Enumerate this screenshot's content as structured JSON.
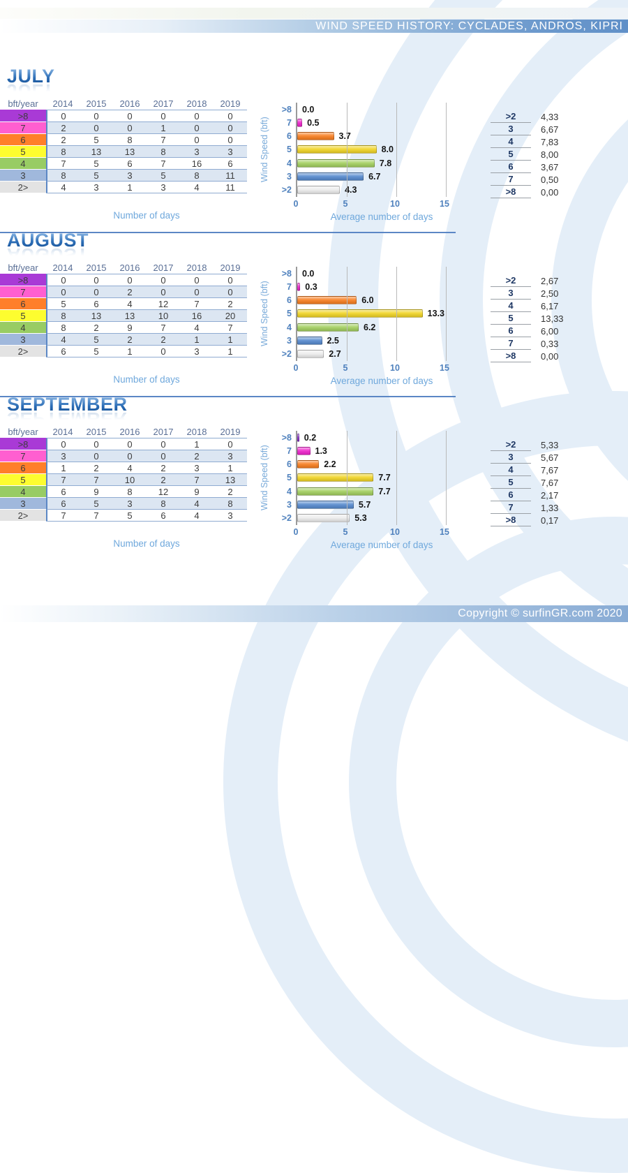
{
  "header": {
    "title": "WIND SPEED HISTORY: CYCLADES, ANDROS, KIPRI"
  },
  "footer": {
    "text": "Copyright © surfinGR.com 2020"
  },
  "labels": {
    "corner": "bft/year",
    "caption": "Number of days",
    "xlabel": "Average number of days",
    "ylabel": "Wind Speed (bft)"
  },
  "years": [
    "2014",
    "2015",
    "2016",
    "2017",
    "2018",
    "2019"
  ],
  "table_row_labels": [
    ">8",
    "7",
    "6",
    "5",
    "4",
    "3",
    "2>"
  ],
  "row_colors": [
    "#a93ad6",
    "#ff5fd0",
    "#ff7f2a",
    "#fdfd2f",
    "#98cc64",
    "#a0b8dc",
    "#e3e3e3"
  ],
  "bar_colors": [
    "#8e2fd0",
    "#ee22cc",
    "#f87d1e",
    "#f0d424",
    "#a2cf5e",
    "#5589ce",
    "#ededed"
  ],
  "accent_colors": {
    "axis_blue": "#4f81bd",
    "light_blue_label": "#6fa8dc",
    "divider_blue": "#5b87c5",
    "header_bar_blue": "#6090c8",
    "alt_row": "#dce6f2"
  },
  "chart_data": [
    {
      "type": "bar",
      "orientation": "horizontal",
      "title": "JULY",
      "categories": [
        ">8",
        "7",
        "6",
        "5",
        "4",
        "3",
        ">2"
      ],
      "values": [
        0.0,
        0.5,
        3.7,
        8.0,
        7.8,
        6.7,
        4.3
      ],
      "value_labels": [
        "0.0",
        "0.5",
        "3.7",
        "8.0",
        "7.8",
        "6.7",
        "4.3"
      ],
      "xlabel": "Average number of days",
      "ylabel": "Wind Speed (bft)",
      "xlim": [
        0,
        15
      ],
      "xticks": [
        "0",
        "5",
        "10",
        "15"
      ],
      "grid": true,
      "legend": "none"
    },
    {
      "type": "bar",
      "orientation": "horizontal",
      "title": "AUGUST",
      "categories": [
        ">8",
        "7",
        "6",
        "5",
        "4",
        "3",
        ">2"
      ],
      "values": [
        0.0,
        0.3,
        6.0,
        13.3,
        6.2,
        2.5,
        2.7
      ],
      "value_labels": [
        "0.0",
        "0.3",
        "6.0",
        "13.3",
        "6.2",
        "2.5",
        "2.7"
      ],
      "xlabel": "Average number of days",
      "ylabel": "Wind Speed (bft)",
      "xlim": [
        0,
        15
      ],
      "xticks": [
        "0",
        "5",
        "10",
        "15"
      ],
      "grid": true,
      "legend": "none"
    },
    {
      "type": "bar",
      "orientation": "horizontal",
      "title": "SEPTEMBER",
      "categories": [
        ">8",
        "7",
        "6",
        "5",
        "4",
        "3",
        ">2"
      ],
      "values": [
        0.2,
        1.3,
        2.2,
        7.7,
        7.7,
        5.7,
        5.3
      ],
      "value_labels": [
        "0.2",
        "1.3",
        "2.2",
        "7.7",
        "7.7",
        "5.7",
        "5.3"
      ],
      "xlabel": "Average number of days",
      "ylabel": "Wind Speed (bft)",
      "xlim": [
        0,
        15
      ],
      "xticks": [
        "0",
        "5",
        "10",
        "15"
      ],
      "grid": true,
      "legend": "none"
    }
  ],
  "sections": [
    {
      "title": "JULY",
      "table": [
        [
          0,
          0,
          0,
          0,
          0,
          0
        ],
        [
          2,
          0,
          0,
          1,
          0,
          0
        ],
        [
          2,
          5,
          8,
          7,
          0,
          0
        ],
        [
          8,
          13,
          13,
          8,
          3,
          3
        ],
        [
          7,
          5,
          6,
          7,
          16,
          6
        ],
        [
          8,
          5,
          3,
          5,
          8,
          11
        ],
        [
          4,
          3,
          1,
          3,
          4,
          11
        ]
      ],
      "summary": [
        [
          ">2",
          "4,33"
        ],
        [
          "3",
          "6,67"
        ],
        [
          "4",
          "7,83"
        ],
        [
          "5",
          "8,00"
        ],
        [
          "6",
          "3,67"
        ],
        [
          "7",
          "0,50"
        ],
        [
          ">8",
          "0,00"
        ]
      ]
    },
    {
      "title": "AUGUST",
      "table": [
        [
          0,
          0,
          0,
          0,
          0,
          0
        ],
        [
          0,
          0,
          2,
          0,
          0,
          0
        ],
        [
          5,
          6,
          4,
          12,
          7,
          2
        ],
        [
          8,
          13,
          13,
          10,
          16,
          20
        ],
        [
          8,
          2,
          9,
          7,
          4,
          7
        ],
        [
          4,
          5,
          2,
          2,
          1,
          1
        ],
        [
          6,
          5,
          1,
          0,
          3,
          1
        ]
      ],
      "summary": [
        [
          ">2",
          "2,67"
        ],
        [
          "3",
          "2,50"
        ],
        [
          "4",
          "6,17"
        ],
        [
          "5",
          "13,33"
        ],
        [
          "6",
          "6,00"
        ],
        [
          "7",
          "0,33"
        ],
        [
          ">8",
          "0,00"
        ]
      ]
    },
    {
      "title": "SEPTEMBER",
      "table": [
        [
          0,
          0,
          0,
          0,
          1,
          0
        ],
        [
          3,
          0,
          0,
          0,
          2,
          3
        ],
        [
          1,
          2,
          4,
          2,
          3,
          1
        ],
        [
          7,
          7,
          10,
          2,
          7,
          13
        ],
        [
          6,
          9,
          8,
          12,
          9,
          2
        ],
        [
          6,
          5,
          3,
          8,
          4,
          8
        ],
        [
          7,
          7,
          5,
          6,
          4,
          3
        ]
      ],
      "summary": [
        [
          ">2",
          "5,33"
        ],
        [
          "3",
          "5,67"
        ],
        [
          "4",
          "7,67"
        ],
        [
          "5",
          "7,67"
        ],
        [
          "6",
          "2,17"
        ],
        [
          "7",
          "1,33"
        ],
        [
          ">8",
          "0,17"
        ]
      ]
    }
  ]
}
